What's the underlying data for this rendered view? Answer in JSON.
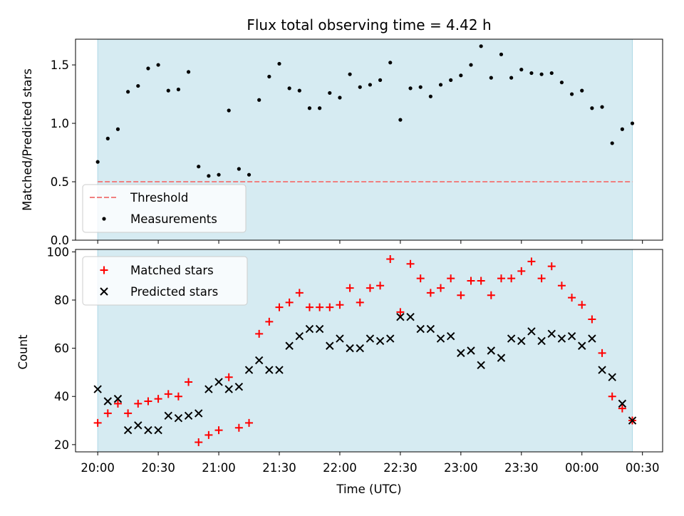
{
  "title": "Flux total observing time = 4.42 h",
  "colors": {
    "shade": "#add8e6",
    "threshold": "#f08080",
    "measurement": "#000000",
    "matched": "#ff0000",
    "predicted": "#000000"
  },
  "chart_data": [
    {
      "type": "scatter",
      "panel": "top",
      "title": "Flux total observing time = 4.42 h",
      "ylabel": "Matched/Predicted stars",
      "xlabel": "",
      "ylim": [
        0,
        1.72
      ],
      "yticks": [
        0.0,
        0.5,
        1.0,
        1.5
      ],
      "ytick_labels": [
        "0.0",
        "0.5",
        "1.0",
        "1.5"
      ],
      "shaded_interval": [
        "20:00",
        "00:25"
      ],
      "legend_position": "lower-left",
      "threshold": {
        "name": "Threshold",
        "value": 0.5,
        "style": "dashed"
      },
      "series": [
        {
          "name": "Measurements",
          "x": [
            "20:00",
            "20:05",
            "20:10",
            "20:15",
            "20:20",
            "20:25",
            "20:30",
            "20:35",
            "20:40",
            "20:45",
            "20:50",
            "20:55",
            "21:00",
            "21:05",
            "21:10",
            "21:15",
            "21:20",
            "21:25",
            "21:30",
            "21:35",
            "21:40",
            "21:45",
            "21:50",
            "21:55",
            "22:00",
            "22:05",
            "22:10",
            "22:15",
            "22:20",
            "22:25",
            "22:30",
            "22:35",
            "22:40",
            "22:45",
            "22:50",
            "22:55",
            "23:00",
            "23:05",
            "23:10",
            "23:15",
            "23:20",
            "23:25",
            "23:30",
            "23:35",
            "23:40",
            "23:45",
            "23:50",
            "23:55",
            "00:00",
            "00:05",
            "00:10",
            "00:15",
            "00:20",
            "00:25"
          ],
          "y": [
            0.67,
            0.87,
            0.95,
            1.27,
            1.32,
            1.47,
            1.5,
            1.28,
            1.29,
            1.44,
            0.63,
            0.55,
            0.56,
            1.11,
            0.61,
            0.56,
            1.2,
            1.4,
            1.51,
            1.3,
            1.28,
            1.13,
            1.13,
            1.26,
            1.22,
            1.42,
            1.31,
            1.33,
            1.37,
            1.52,
            1.03,
            1.3,
            1.31,
            1.23,
            1.33,
            1.37,
            1.41,
            1.5,
            1.66,
            1.39,
            1.59,
            1.39,
            1.46,
            1.43,
            1.42,
            1.43,
            1.35,
            1.25,
            1.28,
            1.13,
            1.14,
            0.83,
            0.95,
            1.0
          ]
        }
      ]
    },
    {
      "type": "scatter",
      "panel": "bottom",
      "ylabel": "Count",
      "xlabel": "Time (UTC)",
      "ylim": [
        17,
        101
      ],
      "yticks": [
        20,
        40,
        60,
        80,
        100
      ],
      "ytick_labels": [
        "20",
        "40",
        "60",
        "80",
        "100"
      ],
      "xlim_minutes_from_start": [
        -11,
        280
      ],
      "xticks": [
        "20:00",
        "20:30",
        "21:00",
        "21:30",
        "22:00",
        "22:30",
        "23:00",
        "23:30",
        "00:00",
        "00:30"
      ],
      "shaded_interval": [
        "20:00",
        "00:25"
      ],
      "legend_position": "upper-left",
      "series": [
        {
          "name": "Matched stars",
          "marker": "+",
          "x": [
            "20:00",
            "20:05",
            "20:10",
            "20:15",
            "20:20",
            "20:25",
            "20:30",
            "20:35",
            "20:40",
            "20:45",
            "20:50",
            "20:55",
            "21:00",
            "21:05",
            "21:10",
            "21:15",
            "21:20",
            "21:25",
            "21:30",
            "21:35",
            "21:40",
            "21:45",
            "21:50",
            "21:55",
            "22:00",
            "22:05",
            "22:10",
            "22:15",
            "22:20",
            "22:25",
            "22:30",
            "22:35",
            "22:40",
            "22:45",
            "22:50",
            "22:55",
            "23:00",
            "23:05",
            "23:10",
            "23:15",
            "23:20",
            "23:25",
            "23:30",
            "23:35",
            "23:40",
            "23:45",
            "23:50",
            "23:55",
            "00:00",
            "00:05",
            "00:10",
            "00:15",
            "00:20",
            "00:25"
          ],
          "y": [
            29,
            33,
            37,
            33,
            37,
            38,
            39,
            41,
            40,
            46,
            21,
            24,
            26,
            48,
            27,
            29,
            66,
            71,
            77,
            79,
            83,
            77,
            77,
            77,
            78,
            85,
            79,
            85,
            86,
            97,
            75,
            95,
            89,
            83,
            85,
            89,
            82,
            88,
            88,
            82,
            89,
            89,
            92,
            96,
            89,
            94,
            86,
            81,
            78,
            72,
            58,
            40,
            35,
            30
          ]
        },
        {
          "name": "Predicted stars",
          "marker": "x",
          "x": [
            "20:00",
            "20:05",
            "20:10",
            "20:15",
            "20:20",
            "20:25",
            "20:30",
            "20:35",
            "20:40",
            "20:45",
            "20:50",
            "20:55",
            "21:00",
            "21:05",
            "21:10",
            "21:15",
            "21:20",
            "21:25",
            "21:30",
            "21:35",
            "21:40",
            "21:45",
            "21:50",
            "21:55",
            "22:00",
            "22:05",
            "22:10",
            "22:15",
            "22:20",
            "22:25",
            "22:30",
            "22:35",
            "22:40",
            "22:45",
            "22:50",
            "22:55",
            "23:00",
            "23:05",
            "23:10",
            "23:15",
            "23:20",
            "23:25",
            "23:30",
            "23:35",
            "23:40",
            "23:45",
            "23:50",
            "23:55",
            "00:00",
            "00:05",
            "00:10",
            "00:15",
            "00:20",
            "00:25"
          ],
          "y": [
            43,
            38,
            39,
            26,
            28,
            26,
            26,
            32,
            31,
            32,
            33,
            43,
            46,
            43,
            44,
            51,
            55,
            51,
            51,
            61,
            65,
            68,
            68,
            61,
            64,
            60,
            60,
            64,
            63,
            64,
            73,
            73,
            68,
            68,
            64,
            65,
            58,
            59,
            53,
            59,
            56,
            64,
            63,
            67,
            63,
            66,
            64,
            65,
            61,
            64,
            51,
            48,
            37,
            30
          ]
        }
      ]
    }
  ]
}
